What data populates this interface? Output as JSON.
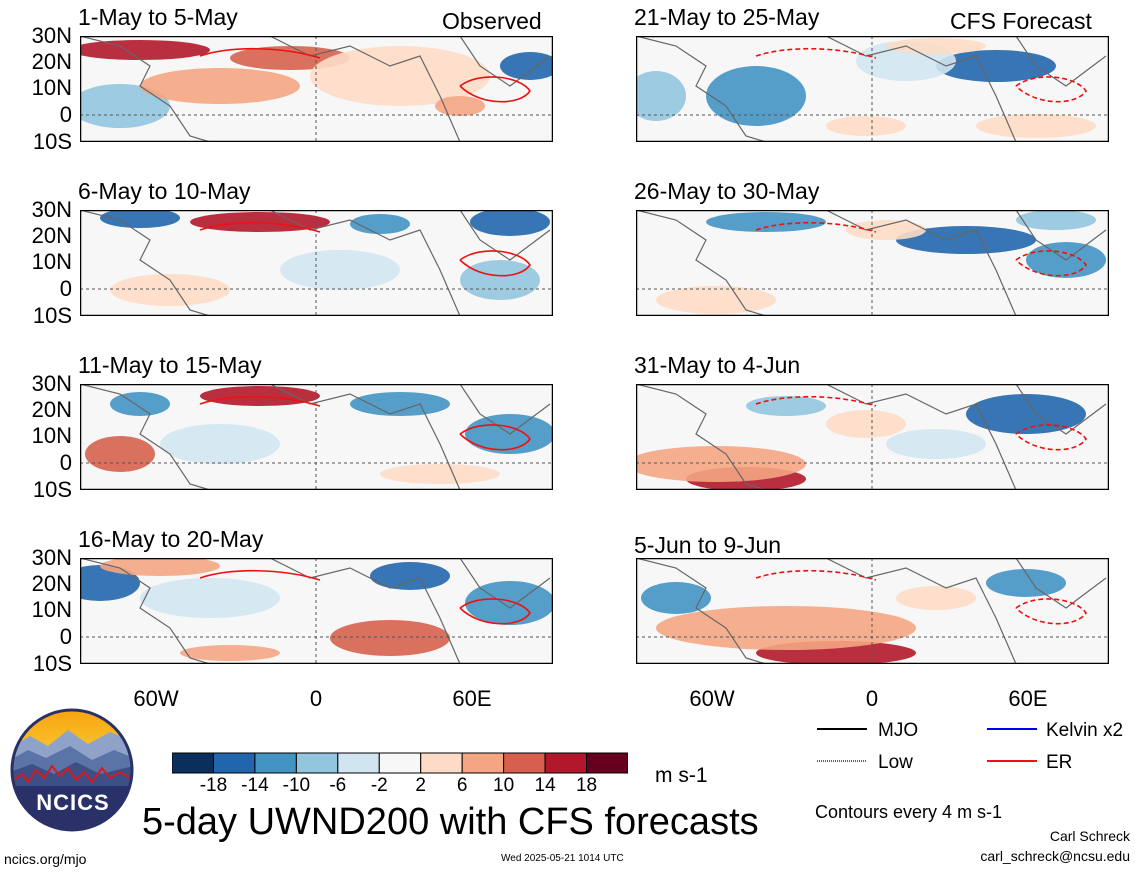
{
  "figure": {
    "title": "5-day UWND200 with CFS forecasts",
    "site": "ncics.org/mjo",
    "timestamp": "Wed 2025-05-21 1014 UTC",
    "author": "Carl Schreck",
    "email": "carl_schreck@ncsu.edu",
    "logo_text": "NCICS",
    "units": "m s-1",
    "contour_note": "Contours every 4 m s-1"
  },
  "columns": {
    "observed_label": "Observed",
    "forecast_label": "CFS Forecast"
  },
  "panels": [
    {
      "title": "1-May to 5-May"
    },
    {
      "title": "6-May to 10-May"
    },
    {
      "title": "11-May to 15-May"
    },
    {
      "title": "16-May to 20-May"
    },
    {
      "title": "21-May to 25-May"
    },
    {
      "title": "26-May to 30-May"
    },
    {
      "title": "31-May to 4-Jun"
    },
    {
      "title": "5-Jun to 9-Jun"
    }
  ],
  "axes": {
    "lat_labels": [
      "30N",
      "20N",
      "10N",
      "0",
      "10S"
    ],
    "lon_labels": [
      "60W",
      "0",
      "60E"
    ]
  },
  "colorbar": {
    "ticks": [
      "-18",
      "-14",
      "-10",
      "-6",
      "-2",
      "2",
      "6",
      "10",
      "14",
      "18"
    ],
    "colors": [
      "#0b2f5c",
      "#2166ac",
      "#4393c3",
      "#92c5de",
      "#d1e5f0",
      "#f7f7f7",
      "#fddbc7",
      "#f4a582",
      "#d6604d",
      "#b2182b",
      "#67001f"
    ]
  },
  "legend": {
    "items": [
      {
        "label": "MJO",
        "color": "#000000"
      },
      {
        "label": "Kelvin x2",
        "color": "#0000ee"
      },
      {
        "label": "Low",
        "color": "#9933cc"
      },
      {
        "label": "ER",
        "color": "#ee1111"
      }
    ]
  }
}
